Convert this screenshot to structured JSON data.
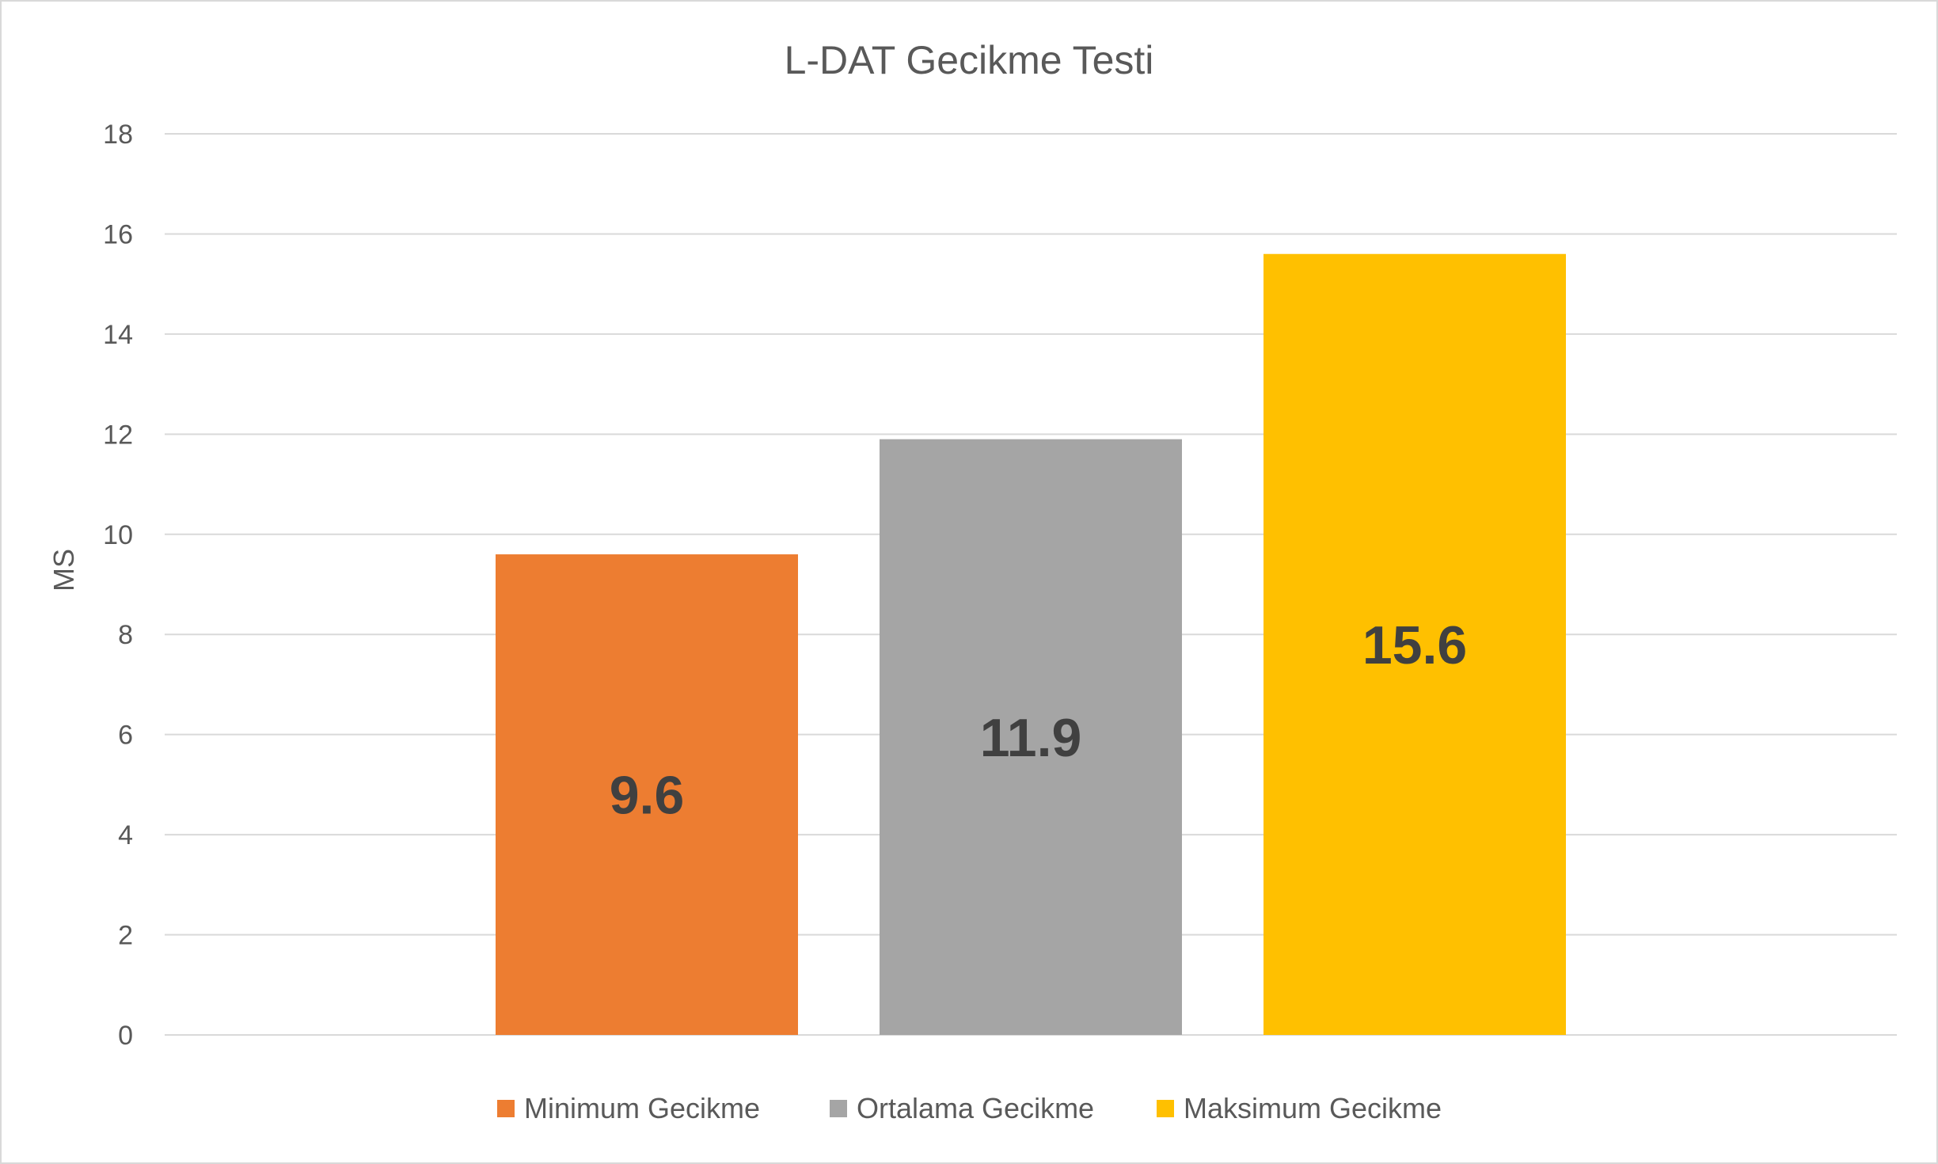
{
  "chart_data": {
    "type": "bar",
    "title": "L-DAT Gecikme Testi",
    "xlabel": "",
    "ylabel": "MS",
    "ylim": [
      0,
      18
    ],
    "yticks": [
      0,
      2,
      4,
      6,
      8,
      10,
      12,
      14,
      16,
      18
    ],
    "grid": true,
    "legend_position": "bottom",
    "series": [
      {
        "name": "Minimum Gecikme",
        "value": 9.6,
        "label": "9.6",
        "color": "#ED7D31"
      },
      {
        "name": "Ortalama Gecikme",
        "value": 11.9,
        "label": "11.9",
        "color": "#A5A5A5"
      },
      {
        "name": "Maksimum Gecikme",
        "value": 15.6,
        "label": "15.6",
        "color": "#FFC000"
      }
    ]
  }
}
